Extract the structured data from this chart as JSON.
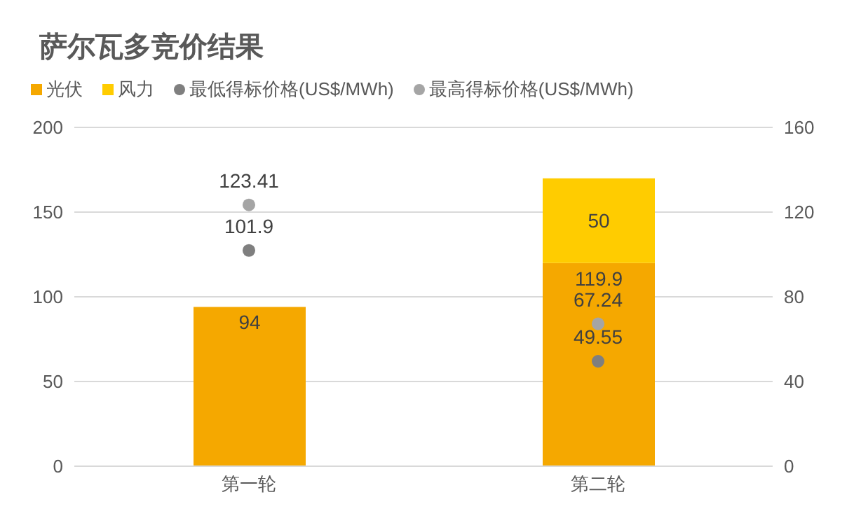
{
  "chart_data": {
    "type": "bar",
    "title": "萨尔瓦多竞价结果",
    "categories": [
      "第一轮",
      "第二轮"
    ],
    "stacked": true,
    "series": [
      {
        "name": "光伏",
        "color": "#f5a800",
        "values": [
          94,
          119.9
        ]
      },
      {
        "name": "风力",
        "color": "#ffcc00",
        "values": [
          null,
          50
        ]
      },
      {
        "name": "最低得标价格(US$/MWh)",
        "type": "scatter",
        "axis": "y2",
        "color": "#7f7f7f",
        "values": [
          101.9,
          49.55
        ]
      },
      {
        "name": "最高得标价格(US$/MWh)",
        "type": "scatter",
        "axis": "y2",
        "color": "#a5a5a5",
        "values": [
          123.41,
          67.24
        ]
      }
    ],
    "ylim": [
      0,
      200
    ],
    "yticks": [
      0,
      50,
      100,
      150,
      200
    ],
    "y2lim": [
      0,
      160
    ],
    "y2ticks": [
      0,
      40,
      80,
      120,
      160
    ],
    "grid": "y",
    "legend": "top left",
    "data_labels": true
  }
}
